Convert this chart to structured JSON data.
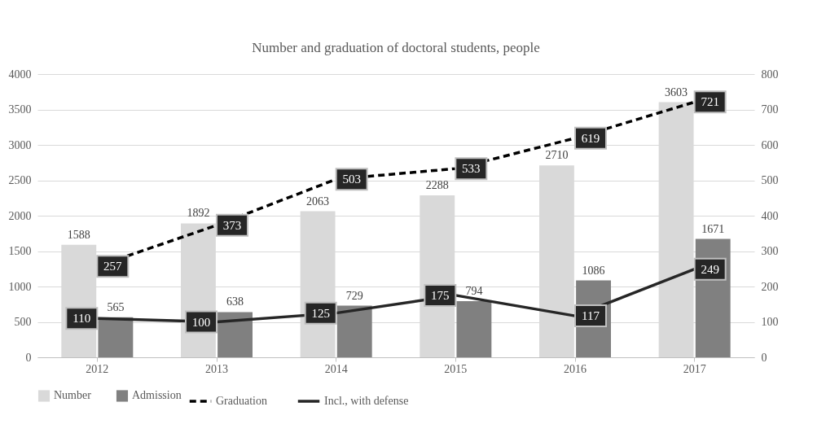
{
  "chart_data": {
    "type": "bar",
    "title": "Number and graduation of doctoral students, people",
    "categories": [
      "2012",
      "2013",
      "2014",
      "2015",
      "2016",
      "2017"
    ],
    "series": [
      {
        "name": "Number",
        "color": "#d9d9d9",
        "values": [
          1588,
          1892,
          2063,
          2288,
          2710,
          3603
        ]
      },
      {
        "name": "Admission",
        "color": "#808080",
        "values": [
          565,
          638,
          729,
          794,
          1086,
          1671
        ]
      },
      {
        "name": "Graduation",
        "type": "line",
        "axis": "y2",
        "line_style": "dashed",
        "color": "#000000",
        "values": [
          257,
          373,
          503,
          533,
          619,
          721
        ]
      },
      {
        "name": "Incl., with defense",
        "type": "line",
        "axis": "y2",
        "line_style": "solid",
        "color": "#262626",
        "values": [
          110,
          100,
          125,
          175,
          117,
          249
        ]
      }
    ],
    "ylim": [
      0,
      4000
    ],
    "yticks": [
      0,
      500,
      1000,
      1500,
      2000,
      2500,
      3000,
      3500,
      4000
    ],
    "y2lim": [
      0,
      800
    ],
    "y2ticks": [
      0,
      100,
      200,
      300,
      400,
      500,
      600,
      700,
      800
    ],
    "grid": "y",
    "legend": "bottom",
    "marker": "none",
    "data_labels": true
  }
}
